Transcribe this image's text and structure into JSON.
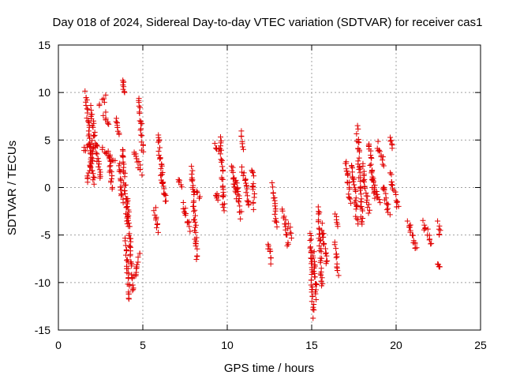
{
  "chart_data": {
    "type": "scatter",
    "title": "Day 018 of 2024, Sidereal Day-to-day VTEC variation (SDTVAR) for receiver cas1",
    "xlabel": "GPS time / hours",
    "ylabel": "SDTVAR / TECUs",
    "xlim": [
      0,
      25
    ],
    "ylim": [
      -15,
      15
    ],
    "xticks": [
      0,
      5,
      10,
      15,
      20,
      25
    ],
    "yticks": [
      -15,
      -10,
      -5,
      0,
      5,
      10,
      15
    ],
    "grid": true,
    "marker": "+",
    "color": "#e00000",
    "segments": [
      [
        1.5,
        2.0,
        3.8,
        4.8
      ],
      [
        1.6,
        2.1,
        9.8,
        0.5
      ],
      [
        1.7,
        2.1,
        0.5,
        4.5
      ],
      [
        1.9,
        2.5,
        8.3,
        1.2
      ],
      [
        2.4,
        2.8,
        8.8,
        9.4
      ],
      [
        2.7,
        3.0,
        7.8,
        6.5
      ],
      [
        2.6,
        3.3,
        4.0,
        2.7
      ],
      [
        3.0,
        3.2,
        3.5,
        -0.3
      ],
      [
        3.4,
        3.6,
        7.5,
        5.5
      ],
      [
        3.6,
        3.8,
        2.5,
        -1.6
      ],
      [
        3.8,
        3.9,
        11.6,
        9.7
      ],
      [
        3.8,
        4.1,
        4.0,
        -3.8
      ],
      [
        4.0,
        4.2,
        -5.5,
        -12.0
      ],
      [
        4.1,
        4.4,
        -1.3,
        -11.0
      ],
      [
        4.5,
        4.8,
        -9.5,
        -7.0
      ],
      [
        4.5,
        4.9,
        3.8,
        1.5
      ],
      [
        4.8,
        5.0,
        9.2,
        4.0
      ],
      [
        5.7,
        5.9,
        -2.2,
        -4.5
      ],
      [
        5.9,
        6.2,
        5.5,
        0.0
      ],
      [
        6.1,
        6.4,
        1.0,
        -1.5
      ],
      [
        7.1,
        7.3,
        0.7,
        0.3
      ],
      [
        7.4,
        7.8,
        -1.8,
        -4.3
      ],
      [
        7.9,
        8.2,
        2.0,
        -7.5
      ],
      [
        8.1,
        8.4,
        -0.3,
        -1.2
      ],
      [
        9.3,
        9.5,
        4.7,
        3.5
      ],
      [
        9.3,
        9.5,
        -0.8,
        -1.2
      ],
      [
        9.6,
        9.8,
        5.2,
        -2.6
      ],
      [
        10.3,
        10.5,
        2.3,
        -1.0
      ],
      [
        10.5,
        10.8,
        1.0,
        -3.0
      ],
      [
        10.8,
        11.0,
        5.6,
        4.2
      ],
      [
        10.9,
        11.3,
        2.0,
        -2.0
      ],
      [
        11.5,
        11.6,
        1.8,
        -2.0
      ],
      [
        12.4,
        12.6,
        -5.8,
        -7.8
      ],
      [
        12.7,
        12.9,
        0.2,
        -4.0
      ],
      [
        13.3,
        13.6,
        -2.5,
        -6.0
      ],
      [
        13.6,
        13.8,
        -4.0,
        -5.0
      ],
      [
        14.9,
        15.1,
        -4.8,
        -13.5
      ],
      [
        15.1,
        15.3,
        -7.0,
        -11.5
      ],
      [
        15.4,
        15.6,
        -2.0,
        -10.5
      ],
      [
        15.6,
        15.9,
        -4.0,
        -8.0
      ],
      [
        16.4,
        16.6,
        -3.0,
        -4.0
      ],
      [
        16.4,
        16.6,
        -6.0,
        -9.2
      ],
      [
        17.0,
        17.3,
        3.0,
        -1.5
      ],
      [
        17.4,
        17.7,
        2.5,
        -3.5
      ],
      [
        17.7,
        18.0,
        6.2,
        -4.0
      ],
      [
        18.0,
        18.4,
        2.2,
        -2.5
      ],
      [
        18.4,
        18.7,
        4.6,
        -0.8
      ],
      [
        18.6,
        19.0,
        1.0,
        -1.5
      ],
      [
        18.9,
        19.3,
        4.5,
        2.5
      ],
      [
        19.2,
        19.6,
        0.3,
        -2.8
      ],
      [
        19.6,
        19.8,
        5.3,
        4.4
      ],
      [
        19.6,
        20.1,
        1.5,
        -2.0
      ],
      [
        20.7,
        21.2,
        -3.5,
        -6.5
      ],
      [
        21.6,
        22.1,
        -3.8,
        -5.8
      ],
      [
        22.5,
        22.6,
        -3.8,
        -5.0
      ],
      [
        22.5,
        22.6,
        -8.0,
        -8.3
      ]
    ]
  }
}
